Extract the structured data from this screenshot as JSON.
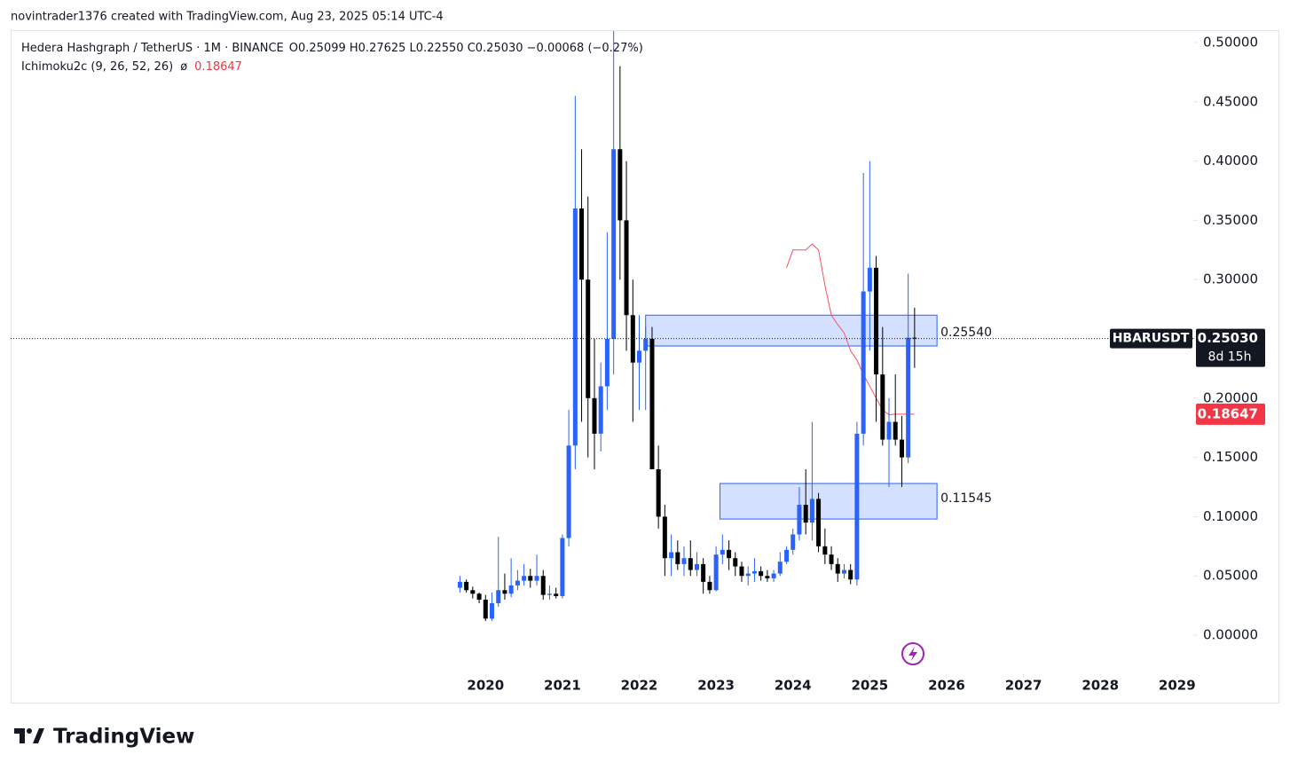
{
  "header": {
    "attribution": "novintrader1376 created with TradingView.com, Aug 23, 2025 05:14 UTC-4",
    "symbol": "Hedera Hashgraph / TetherUS · 1M · BINANCE",
    "ohlc": "O0.25099 H0.27625 L0.22550 C0.25030 −0.00068 (−0.27%)",
    "indicator": "Ichimoku2c (9, 26, 52, 26)",
    "indicator_symbol": "ø",
    "indicator_value": "0.18647"
  },
  "chart_data": {
    "type": "candlestick",
    "x": [
      2019.667,
      2019.75,
      2019.833,
      2019.917,
      2020.0,
      2020.083,
      2020.167,
      2020.25,
      2020.333,
      2020.417,
      2020.5,
      2020.583,
      2020.667,
      2020.75,
      2020.833,
      2020.917,
      2021.0,
      2021.083,
      2021.167,
      2021.25,
      2021.333,
      2021.417,
      2021.5,
      2021.583,
      2021.667,
      2021.75,
      2021.833,
      2021.917,
      2022.0,
      2022.083,
      2022.167,
      2022.25,
      2022.333,
      2022.417,
      2022.5,
      2022.583,
      2022.667,
      2022.75,
      2022.833,
      2022.917,
      2023.0,
      2023.083,
      2023.167,
      2023.25,
      2023.333,
      2023.417,
      2023.5,
      2023.583,
      2023.667,
      2023.75,
      2023.833,
      2023.917,
      2024.0,
      2024.083,
      2024.167,
      2024.25,
      2024.333,
      2024.417,
      2024.5,
      2024.583,
      2024.667,
      2024.75,
      2024.833,
      2024.917,
      2025.0,
      2025.083,
      2025.167,
      2025.25,
      2025.333,
      2025.417,
      2025.5,
      2025.583
    ],
    "open": [
      0.04,
      0.045,
      0.038,
      0.035,
      0.03,
      0.014,
      0.027,
      0.038,
      0.035,
      0.042,
      0.046,
      0.05,
      0.046,
      0.05,
      0.034,
      0.035,
      0.033,
      0.082,
      0.16,
      0.36,
      0.3,
      0.2,
      0.17,
      0.21,
      0.25,
      0.41,
      0.35,
      0.27,
      0.23,
      0.24,
      0.25,
      0.14,
      0.1,
      0.065,
      0.07,
      0.06,
      0.065,
      0.055,
      0.06,
      0.045,
      0.038,
      0.068,
      0.072,
      0.065,
      0.058,
      0.05,
      0.052,
      0.054,
      0.05,
      0.048,
      0.052,
      0.062,
      0.072,
      0.085,
      0.11,
      0.095,
      0.115,
      0.075,
      0.068,
      0.06,
      0.052,
      0.055,
      0.047,
      0.17,
      0.29,
      0.31,
      0.22,
      0.165,
      0.18,
      0.165,
      0.15,
      0.25099
    ],
    "high": [
      0.05,
      0.047,
      0.041,
      0.036,
      0.034,
      0.036,
      0.083,
      0.052,
      0.065,
      0.055,
      0.06,
      0.056,
      0.068,
      0.055,
      0.042,
      0.04,
      0.085,
      0.19,
      0.455,
      0.41,
      0.37,
      0.25,
      0.23,
      0.34,
      0.52,
      0.48,
      0.4,
      0.3,
      0.27,
      0.26,
      0.26,
      0.16,
      0.11,
      0.085,
      0.08,
      0.075,
      0.08,
      0.07,
      0.065,
      0.05,
      0.075,
      0.085,
      0.08,
      0.07,
      0.062,
      0.058,
      0.065,
      0.058,
      0.055,
      0.055,
      0.07,
      0.075,
      0.09,
      0.125,
      0.14,
      0.18,
      0.12,
      0.09,
      0.075,
      0.065,
      0.06,
      0.06,
      0.18,
      0.39,
      0.4,
      0.32,
      0.26,
      0.2,
      0.22,
      0.185,
      0.305,
      0.27625
    ],
    "low": [
      0.036,
      0.036,
      0.031,
      0.027,
      0.012,
      0.012,
      0.024,
      0.03,
      0.032,
      0.038,
      0.042,
      0.04,
      0.042,
      0.03,
      0.03,
      0.031,
      0.031,
      0.075,
      0.14,
      0.18,
      0.15,
      0.14,
      0.155,
      0.19,
      0.22,
      0.3,
      0.24,
      0.18,
      0.19,
      0.19,
      0.14,
      0.09,
      0.05,
      0.05,
      0.055,
      0.05,
      0.05,
      0.05,
      0.035,
      0.035,
      0.037,
      0.06,
      0.055,
      0.05,
      0.045,
      0.042,
      0.045,
      0.046,
      0.045,
      0.045,
      0.05,
      0.06,
      0.068,
      0.08,
      0.085,
      0.08,
      0.07,
      0.06,
      0.055,
      0.045,
      0.048,
      0.043,
      0.042,
      0.16,
      0.24,
      0.18,
      0.16,
      0.125,
      0.16,
      0.125,
      0.145,
      0.2255
    ],
    "close": [
      0.045,
      0.038,
      0.035,
      0.03,
      0.014,
      0.027,
      0.038,
      0.035,
      0.042,
      0.046,
      0.05,
      0.046,
      0.05,
      0.034,
      0.035,
      0.033,
      0.082,
      0.16,
      0.36,
      0.3,
      0.2,
      0.17,
      0.21,
      0.25,
      0.41,
      0.35,
      0.27,
      0.23,
      0.24,
      0.25,
      0.14,
      0.1,
      0.065,
      0.07,
      0.06,
      0.065,
      0.055,
      0.06,
      0.045,
      0.038,
      0.068,
      0.072,
      0.065,
      0.058,
      0.05,
      0.052,
      0.054,
      0.05,
      0.048,
      0.052,
      0.062,
      0.072,
      0.085,
      0.11,
      0.095,
      0.115,
      0.075,
      0.068,
      0.06,
      0.052,
      0.055,
      0.047,
      0.17,
      0.29,
      0.31,
      0.22,
      0.165,
      0.18,
      0.165,
      0.15,
      0.25099,
      0.2503
    ],
    "up_color": "#2962ff",
    "down_color": "#000000",
    "xlim": [
      2013.82,
      2029.21
    ],
    "xticks": [
      2020,
      2021,
      2022,
      2023,
      2024,
      2025,
      2026,
      2027,
      2028,
      2029
    ],
    "ylim": [
      -0.0329,
      0.5097
    ],
    "yticks": [
      {
        "value": 0,
        "label": "0.00000"
      },
      {
        "value": 0.05,
        "label": "0.05000"
      },
      {
        "value": 0.1,
        "label": "0.10000"
      },
      {
        "value": 0.15,
        "label": "0.15000"
      },
      {
        "value": 0.2,
        "label": "0.20000"
      },
      {
        "value": 0.25,
        "label": "0.25000"
      },
      {
        "value": 0.3,
        "label": "0.30000"
      },
      {
        "value": 0.35,
        "label": "0.35000"
      },
      {
        "value": 0.4,
        "label": "0.40000"
      },
      {
        "value": 0.45,
        "label": "0.45000"
      },
      {
        "value": 0.5,
        "label": "0.50000"
      }
    ],
    "ichimoku": {
      "color": "#f7525f",
      "x": [
        2023.917,
        2024.0,
        2024.083,
        2024.167,
        2024.25,
        2024.333,
        2024.417,
        2024.5,
        2024.583,
        2024.667,
        2024.75,
        2024.833,
        2024.917,
        2025.0,
        2025.083,
        2025.167,
        2025.25,
        2025.333,
        2025.417,
        2025.5,
        2025.583
      ],
      "values": [
        0.31,
        0.325,
        0.325,
        0.325,
        0.33,
        0.325,
        0.295,
        0.27,
        0.262,
        0.255,
        0.24,
        0.232,
        0.22,
        0.21,
        0.2,
        0.19,
        0.186,
        0.18647,
        0.18647,
        0.18647,
        0.18647
      ]
    },
    "zones": [
      {
        "label": {
          "value": 0.2554,
          "label": "0.25540"
        },
        "top": 0.27,
        "bottom": 0.244,
        "start": 2022.083,
        "end": 2025.875
      },
      {
        "label": {
          "value": 0.11545,
          "label": "0.11545"
        },
        "top": 0.128,
        "bottom": 0.098,
        "start": 2023.05,
        "end": 2025.875
      }
    ],
    "price_label": {
      "symbol": "HBARUSDT",
      "value": {
        "value": 0.2503,
        "label": "0.25030"
      },
      "countdown": "8d 15h"
    },
    "indicator_label": {
      "value": 0.18647,
      "label": "0.18647"
    }
  },
  "footer": {
    "logo": "TradingView"
  }
}
